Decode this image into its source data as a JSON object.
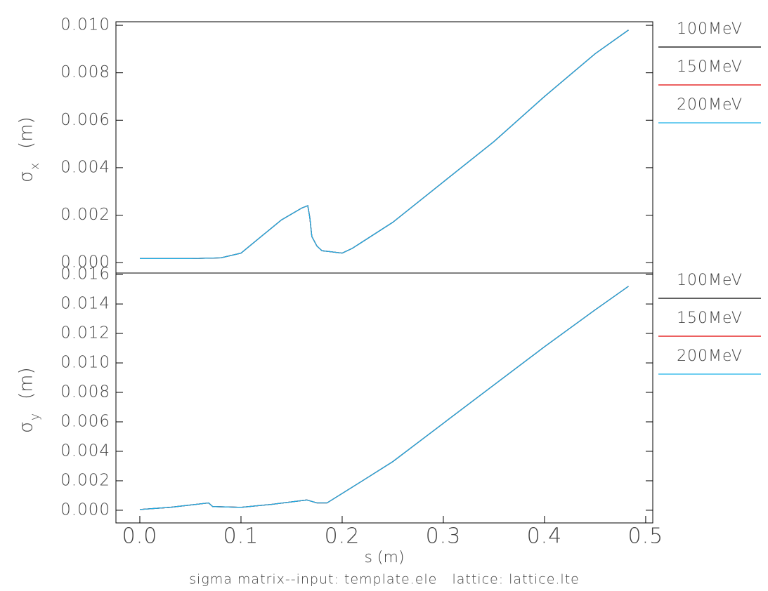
{
  "chart_data": [
    {
      "type": "line",
      "ylabel": "σ",
      "ylabel_sub": "x",
      "ylabel_unit": "(m)",
      "x": [
        0,
        0.05,
        0.08,
        0.1,
        0.12,
        0.14,
        0.16,
        0.166,
        0.168,
        0.17,
        0.175,
        0.18,
        0.19,
        0.2,
        0.21,
        0.25,
        0.3,
        0.35,
        0.4,
        0.45,
        0.483
      ],
      "series": [
        {
          "name": "100MeV",
          "color": "#000000",
          "values": [
            0.00017,
            0.00017,
            0.0002,
            0.0004,
            0.0011,
            0.0018,
            0.0023,
            0.0024,
            0.0019,
            0.0011,
            0.0007,
            0.0005,
            0.00045,
            0.0004,
            0.0006,
            0.0017,
            0.0034,
            0.0051,
            0.007,
            0.0088,
            0.0098
          ]
        },
        {
          "name": "150MeV",
          "color": "#e00000",
          "values": [
            0.00017,
            0.00017,
            0.0002,
            0.0004,
            0.0011,
            0.0018,
            0.0023,
            0.0024,
            0.0019,
            0.0011,
            0.0007,
            0.0005,
            0.00045,
            0.0004,
            0.0006,
            0.0017,
            0.0034,
            0.0051,
            0.007,
            0.0088,
            0.0098
          ]
        },
        {
          "name": "200MeV",
          "color": "#1ab0e8",
          "values": [
            0.00017,
            0.00017,
            0.0002,
            0.0004,
            0.0011,
            0.0018,
            0.0023,
            0.0024,
            0.0019,
            0.0011,
            0.0007,
            0.0005,
            0.00045,
            0.0004,
            0.0006,
            0.0017,
            0.0034,
            0.0051,
            0.007,
            0.0088,
            0.0098
          ]
        }
      ],
      "xlim": [
        -0.0236,
        0.507
      ],
      "ylim": [
        -0.00044,
        0.01015
      ],
      "yticks": [
        {
          "value": 0,
          "label": "0.000"
        },
        {
          "value": 0.002,
          "label": "0.002"
        },
        {
          "value": 0.004,
          "label": "0.004"
        },
        {
          "value": 0.006,
          "label": "0.006"
        },
        {
          "value": 0.008,
          "label": "0.008"
        },
        {
          "value": 0.01,
          "label": "0.010"
        }
      ]
    },
    {
      "type": "line",
      "ylabel": "σ",
      "ylabel_sub": "y",
      "ylabel_unit": "(m)",
      "xlabel": "s (m)",
      "x": [
        0,
        0.03,
        0.068,
        0.072,
        0.1,
        0.13,
        0.165,
        0.175,
        0.185,
        0.22,
        0.25,
        0.3,
        0.35,
        0.4,
        0.45,
        0.483
      ],
      "series": [
        {
          "name": "100MeV",
          "color": "#000000",
          "values": [
            5e-05,
            0.0002,
            0.0005,
            0.00025,
            0.0002,
            0.0004,
            0.0007,
            0.0005,
            0.0005,
            0.002,
            0.0033,
            0.0059,
            0.0085,
            0.0111,
            0.0136,
            0.0152
          ]
        },
        {
          "name": "150MeV",
          "color": "#e00000",
          "values": [
            5e-05,
            0.0002,
            0.0005,
            0.00025,
            0.0002,
            0.0004,
            0.0007,
            0.0005,
            0.0005,
            0.002,
            0.0033,
            0.0059,
            0.0085,
            0.0111,
            0.0136,
            0.0152
          ]
        },
        {
          "name": "200MeV",
          "color": "#1ab0e8",
          "values": [
            5e-05,
            0.0002,
            0.0005,
            0.00025,
            0.0002,
            0.0004,
            0.0007,
            0.0005,
            0.0005,
            0.002,
            0.0033,
            0.0059,
            0.0085,
            0.0111,
            0.0136,
            0.0152
          ]
        }
      ],
      "xlim": [
        -0.0236,
        0.507
      ],
      "xticks": [
        {
          "value": 0,
          "label": "0.0"
        },
        {
          "value": 0.1,
          "label": "0.1"
        },
        {
          "value": 0.2,
          "label": "0.2"
        },
        {
          "value": 0.3,
          "label": "0.3"
        },
        {
          "value": 0.4,
          "label": "0.4"
        },
        {
          "value": 0.5,
          "label": "0.5"
        }
      ],
      "ylim": [
        -0.00086,
        0.0161
      ],
      "yticks": [
        {
          "value": 0,
          "label": "0.000"
        },
        {
          "value": 0.002,
          "label": "0.002"
        },
        {
          "value": 0.004,
          "label": "0.004"
        },
        {
          "value": 0.006,
          "label": "0.006"
        },
        {
          "value": 0.008,
          "label": "0.008"
        },
        {
          "value": 0.01,
          "label": "0.010"
        },
        {
          "value": 0.012,
          "label": "0.012"
        },
        {
          "value": 0.014,
          "label": "0.014"
        },
        {
          "value": 0.016,
          "label": "0.016"
        }
      ]
    }
  ],
  "caption": "sigma matrix--input: template.ele   lattice: lattice.lte"
}
